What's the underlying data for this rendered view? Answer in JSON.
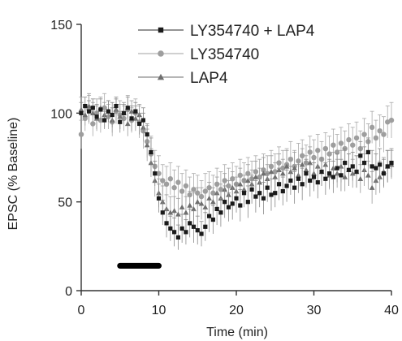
{
  "chart_data": {
    "type": "scatter",
    "title": "",
    "xlabel": "Time (min)",
    "ylabel": "EPSC (% Baseline)",
    "xlim": [
      0,
      40
    ],
    "ylim": [
      0,
      150
    ],
    "xticks": [
      "0",
      "10",
      "20",
      "30",
      "40"
    ],
    "yticks": [
      "0",
      "50",
      "100",
      "150"
    ],
    "grid": false,
    "legend_position": "top-right",
    "drug_bar": {
      "x_start": 5,
      "x_end": 10,
      "y": 14
    },
    "series": [
      {
        "name": "LY354740 + LAP4",
        "marker": "square",
        "color": "#1a1a1a",
        "line_color": "#555555",
        "error_color": "#888888",
        "x": [
          0,
          0.5,
          1,
          1.5,
          2,
          2.5,
          3,
          3.5,
          4,
          4.5,
          5,
          5.5,
          6,
          6.5,
          7,
          7.5,
          8,
          8.5,
          9,
          9.5,
          10,
          10.5,
          11,
          11.5,
          12,
          12.5,
          13,
          13.5,
          14,
          14.5,
          15,
          15.5,
          16,
          16.5,
          17,
          17.5,
          18,
          18.5,
          19,
          19.5,
          20,
          20.5,
          21,
          21.5,
          22,
          22.5,
          23,
          23.5,
          24,
          24.5,
          25,
          25.5,
          26,
          26.5,
          27,
          27.5,
          28,
          28.5,
          29,
          29.5,
          30,
          30.5,
          31,
          31.5,
          32,
          32.5,
          33,
          33.5,
          34,
          34.5,
          35,
          35.5,
          36,
          36.5,
          37,
          37.5,
          38,
          38.5,
          39,
          39.5,
          40
        ],
        "y": [
          100,
          104,
          101,
          103,
          98,
          102,
          96,
          101,
          99,
          104,
          95,
          100,
          103,
          97,
          101,
          94,
          96,
          88,
          78,
          66,
          52,
          44,
          38,
          35,
          33,
          30,
          35,
          33,
          38,
          36,
          34,
          32,
          36,
          42,
          40,
          46,
          44,
          50,
          47,
          49,
          52,
          48,
          55,
          50,
          57,
          53,
          55,
          52,
          58,
          54,
          55,
          60,
          56,
          59,
          62,
          58,
          63,
          60,
          66,
          62,
          64,
          61,
          67,
          63,
          66,
          64,
          69,
          65,
          72,
          68,
          70,
          67,
          76,
          72,
          78,
          70,
          69,
          71,
          66,
          70,
          72
        ],
        "err": [
          6,
          5,
          6,
          5,
          7,
          6,
          5,
          6,
          7,
          5,
          6,
          5,
          6,
          7,
          5,
          6,
          7,
          6,
          8,
          7,
          8,
          7,
          8,
          7,
          8,
          7,
          8,
          7,
          8,
          9,
          8,
          7,
          8,
          9,
          8,
          9,
          8,
          9,
          8,
          9,
          8,
          9,
          8,
          9,
          8,
          9,
          8,
          9,
          8,
          9,
          8,
          9,
          8,
          9,
          8,
          9,
          8,
          9,
          8,
          9,
          8,
          9,
          8,
          9,
          8,
          9,
          8,
          9,
          8,
          9,
          8,
          9,
          8,
          9,
          8,
          9,
          8,
          9,
          8,
          9,
          8
        ]
      },
      {
        "name": "LY354740",
        "marker": "circle",
        "color": "#9e9e9e",
        "line_color": "#b5b5b5",
        "error_color": "#a8a8a8",
        "x": [
          0,
          0.5,
          1,
          1.5,
          2,
          2.5,
          3,
          3.5,
          4,
          4.5,
          5,
          5.5,
          6,
          6.5,
          7,
          7.5,
          8,
          8.5,
          9,
          9.5,
          10,
          10.5,
          11,
          11.5,
          12,
          12.5,
          13,
          13.5,
          14,
          14.5,
          15,
          15.5,
          16,
          16.5,
          17,
          17.5,
          18,
          18.5,
          19,
          19.5,
          20,
          20.5,
          21,
          21.5,
          22,
          22.5,
          23,
          23.5,
          24,
          24.5,
          25,
          25.5,
          26,
          26.5,
          27,
          27.5,
          28,
          28.5,
          29,
          29.5,
          30,
          30.5,
          31,
          31.5,
          32,
          32.5,
          33,
          33.5,
          34,
          34.5,
          35,
          35.5,
          36,
          36.5,
          37,
          37.5,
          38,
          38.5,
          39,
          39.5,
          40
        ],
        "y": [
          88,
          97,
          102,
          94,
          100,
          96,
          103,
          98,
          95,
          101,
          99,
          97,
          102,
          96,
          100,
          95,
          90,
          84,
          77,
          70,
          66,
          62,
          60,
          63,
          58,
          61,
          56,
          59,
          54,
          57,
          55,
          53,
          56,
          58,
          55,
          60,
          57,
          62,
          59,
          63,
          60,
          65,
          62,
          66,
          63,
          67,
          64,
          68,
          66,
          70,
          67,
          72,
          69,
          71,
          74,
          70,
          73,
          76,
          72,
          78,
          75,
          79,
          74,
          80,
          77,
          82,
          78,
          83,
          80,
          85,
          82,
          86,
          80,
          88,
          84,
          92,
          86,
          90,
          88,
          95,
          96
        ],
        "err": [
          8,
          7,
          8,
          7,
          8,
          7,
          8,
          7,
          8,
          7,
          8,
          7,
          8,
          7,
          8,
          9,
          10,
          9,
          10,
          9,
          10,
          9,
          10,
          9,
          10,
          9,
          10,
          9,
          10,
          9,
          10,
          9,
          10,
          9,
          10,
          9,
          10,
          9,
          10,
          9,
          10,
          9,
          10,
          9,
          10,
          9,
          10,
          9,
          10,
          9,
          10,
          9,
          10,
          9,
          10,
          9,
          10,
          9,
          10,
          9,
          10,
          9,
          10,
          9,
          10,
          9,
          10,
          9,
          10,
          9,
          10,
          9,
          10,
          9,
          10,
          9,
          10,
          9,
          10,
          9,
          10
        ]
      },
      {
        "name": "LAP4",
        "marker": "triangle",
        "color": "#6e6e6e",
        "line_color": "#8a8a8a",
        "error_color": "#9a9a9a",
        "x": [
          0,
          0.5,
          1,
          1.5,
          2,
          2.5,
          3,
          3.5,
          4,
          4.5,
          5,
          5.5,
          6,
          6.5,
          7,
          7.5,
          8,
          8.5,
          9,
          9.5,
          10,
          10.5,
          11,
          11.5,
          12,
          12.5,
          13,
          13.5,
          14,
          14.5,
          15,
          15.5,
          16,
          16.5,
          17,
          17.5,
          18,
          18.5,
          19,
          19.5,
          20,
          20.5,
          21,
          21.5,
          22,
          22.5,
          23,
          23.5,
          24,
          24.5,
          25,
          25.5,
          26,
          26.5,
          27,
          27.5,
          28,
          28.5,
          29,
          29.5,
          30,
          30.5,
          31,
          31.5,
          32,
          32.5,
          33,
          33.5,
          34,
          34.5,
          35,
          35.5,
          36,
          36.5,
          37,
          37.5,
          38,
          38.5,
          39,
          39.5,
          40
        ],
        "y": [
          102,
          99,
          104,
          100,
          97,
          103,
          99,
          101,
          96,
          102,
          98,
          100,
          94,
          101,
          97,
          99,
          92,
          82,
          72,
          62,
          55,
          50,
          46,
          44,
          45,
          43,
          47,
          44,
          48,
          46,
          50,
          49,
          47,
          52,
          50,
          55,
          52,
          57,
          54,
          58,
          56,
          60,
          57,
          62,
          60,
          64,
          61,
          66,
          63,
          67,
          64,
          68,
          66,
          70,
          67,
          69,
          65,
          71,
          68,
          72,
          66,
          70,
          67,
          71,
          65,
          69,
          66,
          70,
          64,
          68,
          66,
          67,
          63,
          68,
          65,
          58,
          62,
          64,
          67,
          70,
          71
        ],
        "err": [
          7,
          6,
          7,
          6,
          7,
          6,
          7,
          6,
          7,
          6,
          7,
          6,
          7,
          6,
          7,
          6,
          8,
          9,
          8,
          9,
          8,
          9,
          8,
          9,
          8,
          9,
          8,
          9,
          8,
          9,
          8,
          9,
          8,
          9,
          8,
          9,
          8,
          9,
          8,
          9,
          8,
          9,
          8,
          9,
          8,
          9,
          8,
          9,
          8,
          9,
          8,
          9,
          8,
          9,
          8,
          9,
          8,
          9,
          8,
          9,
          8,
          9,
          8,
          9,
          8,
          9,
          8,
          9,
          8,
          9,
          8,
          9,
          8,
          9,
          8,
          9,
          8,
          9,
          8,
          9,
          8
        ]
      }
    ]
  }
}
